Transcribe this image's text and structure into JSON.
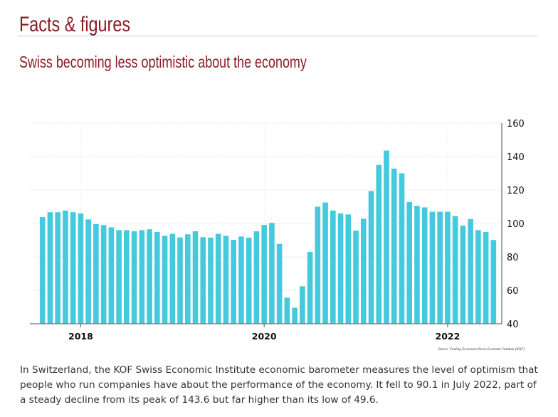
{
  "header": {
    "title": "Facts & figures"
  },
  "chart_data": {
    "type": "bar",
    "title": "Swiss becoming less optimistic about the economy",
    "xlabel": "",
    "ylabel": "",
    "start_month": "2017-08",
    "x_tick_labels": [
      "2018",
      "2020",
      "2022"
    ],
    "y_tick_labels": [
      "40",
      "60",
      "80",
      "100",
      "120",
      "140",
      "160"
    ],
    "ylim": [
      40,
      160
    ],
    "grid": true,
    "y_axis_side": "right",
    "bar_color": "#45c9dc",
    "categories": [
      "2017-08",
      "2017-09",
      "2017-10",
      "2017-11",
      "2017-12",
      "2018-01",
      "2018-02",
      "2018-03",
      "2018-04",
      "2018-05",
      "2018-06",
      "2018-07",
      "2018-08",
      "2018-09",
      "2018-10",
      "2018-11",
      "2018-12",
      "2019-01",
      "2019-02",
      "2019-03",
      "2019-04",
      "2019-05",
      "2019-06",
      "2019-07",
      "2019-08",
      "2019-09",
      "2019-10",
      "2019-11",
      "2019-12",
      "2020-01",
      "2020-02",
      "2020-03",
      "2020-04",
      "2020-05",
      "2020-06",
      "2020-07",
      "2020-08",
      "2020-09",
      "2020-10",
      "2020-11",
      "2020-12",
      "2021-01",
      "2021-02",
      "2021-03",
      "2021-04",
      "2021-05",
      "2021-06",
      "2021-07",
      "2021-08",
      "2021-09",
      "2021-10",
      "2021-11",
      "2021-12",
      "2022-01",
      "2022-02",
      "2022-03",
      "2022-04",
      "2022-05",
      "2022-06",
      "2022-07"
    ],
    "values": [
      103.8,
      106.7,
      106.7,
      107.7,
      106.7,
      106.0,
      102.4,
      99.6,
      99.0,
      97.7,
      96.0,
      96.0,
      95.3,
      96.0,
      96.5,
      94.9,
      92.6,
      93.8,
      91.6,
      93.5,
      95.3,
      91.8,
      91.5,
      93.8,
      92.6,
      90.2,
      92.2,
      91.5,
      95.3,
      99.1,
      100.3,
      87.8,
      55.6,
      49.6,
      62.4,
      83.0,
      110.0,
      112.5,
      107.7,
      106.0,
      105.4,
      95.7,
      102.8,
      119.4,
      135.0,
      143.6,
      132.8,
      130.0,
      112.8,
      110.5,
      109.6,
      107.0,
      107.0,
      107.0,
      104.4,
      98.7,
      102.6,
      96.0,
      94.9,
      90.1
    ],
    "source": "Source: Trading Economics/Swiss Economic Institute (KOF)"
  },
  "body_text": "In Switzerland, the KOF Swiss Economic Institute economic barometer measures the level of optimism that people who run companies have about the performance of the economy. It fell to 90.1 in July 2022, part of a steady decline from its peak of 143.6 but far higher than its low of 49.6."
}
